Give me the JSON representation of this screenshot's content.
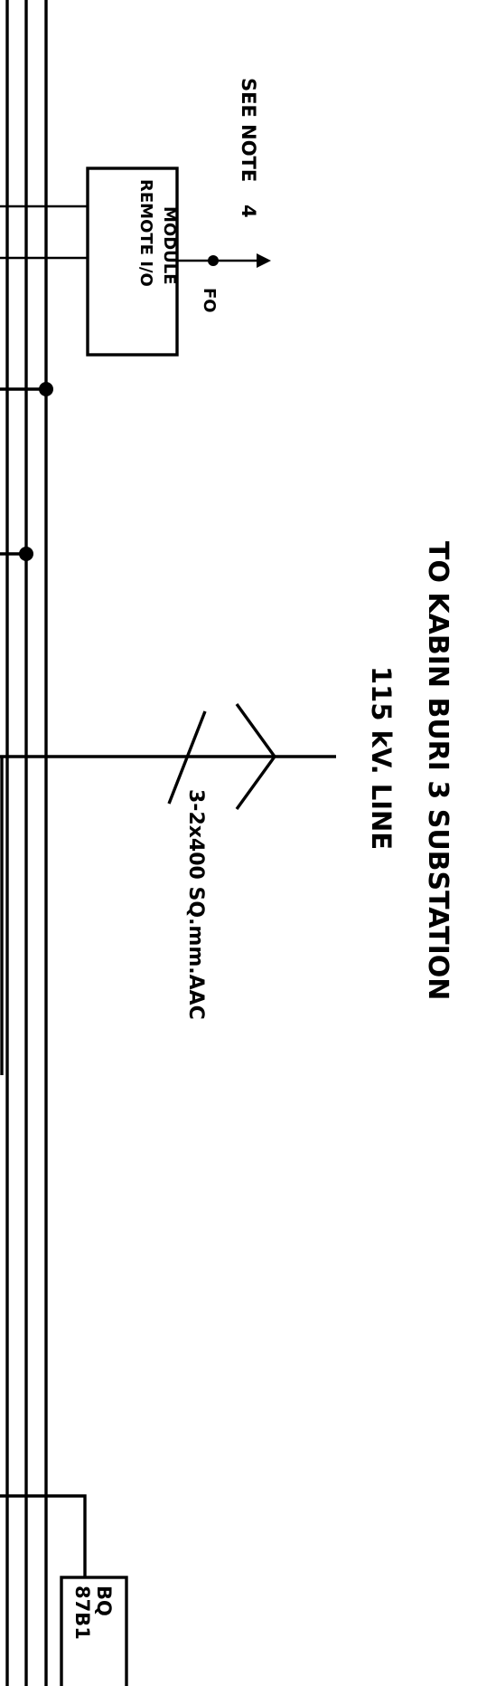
{
  "labels": {
    "see_note": "SEE NOTE",
    "note_number": "4",
    "fiber_optic": "FO",
    "remote_io_line1": "REMOTE I/O",
    "remote_io_line2": "MODULE",
    "to_substation_line1": "TO KABIN BURI 3 SUBSTATION",
    "line_voltage": "115 kV. LINE",
    "conductor_spec": "3-2x400 SQ.mm.AAC",
    "bottom_box_line1": "87B1",
    "bottom_box_line2": "BQ"
  },
  "colors": {
    "ink": "#000000",
    "paper": "#ffffff"
  }
}
